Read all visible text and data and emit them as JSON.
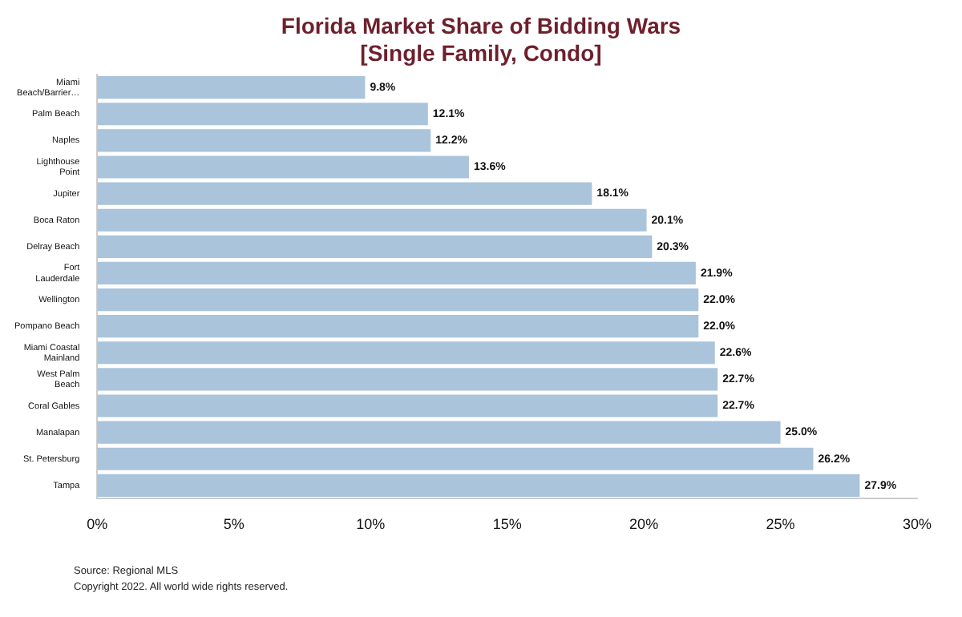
{
  "chart_data": {
    "type": "bar",
    "orientation": "horizontal",
    "title": "Florida Market Share of Bidding Wars",
    "subtitle": "[Single Family, Condo]",
    "categories": [
      "Miami Beach/Barrier…",
      "Palm Beach",
      "Naples",
      "Lighthouse Point",
      "Jupiter",
      "Boca Raton",
      "Delray Beach",
      "Fort Lauderdale",
      "Wellington",
      "Pompano Beach",
      "Miami Coastal Mainland",
      "West Palm Beach",
      "Coral Gables",
      "Manalapan",
      "St. Petersburg",
      "Tampa"
    ],
    "values": [
      9.8,
      12.1,
      12.2,
      13.6,
      18.1,
      20.1,
      20.3,
      21.9,
      22.0,
      22.0,
      22.6,
      22.7,
      22.7,
      25.0,
      26.2,
      27.9
    ],
    "value_labels": [
      "9.8%",
      "12.1%",
      "12.2%",
      "13.6%",
      "18.1%",
      "20.1%",
      "20.3%",
      "21.9%",
      "22.0%",
      "22.0%",
      "22.6%",
      "22.7%",
      "22.7%",
      "25.0%",
      "26.2%",
      "27.9%"
    ],
    "color": "#a9c4db",
    "xlim": [
      0,
      30
    ],
    "xticks": [
      {
        "value": 0,
        "label": "0%"
      },
      {
        "value": 5,
        "label": "5%"
      },
      {
        "value": 10,
        "label": "10%"
      },
      {
        "value": 15,
        "label": "15%"
      },
      {
        "value": 20,
        "label": "20%"
      },
      {
        "value": 25,
        "label": "25%"
      },
      {
        "value": 30,
        "label": "30%"
      }
    ],
    "grid": false,
    "legend": false,
    "annotations": [
      "Source: Regional MLS",
      "Copyright 2022. All world wide rights reserved."
    ]
  }
}
